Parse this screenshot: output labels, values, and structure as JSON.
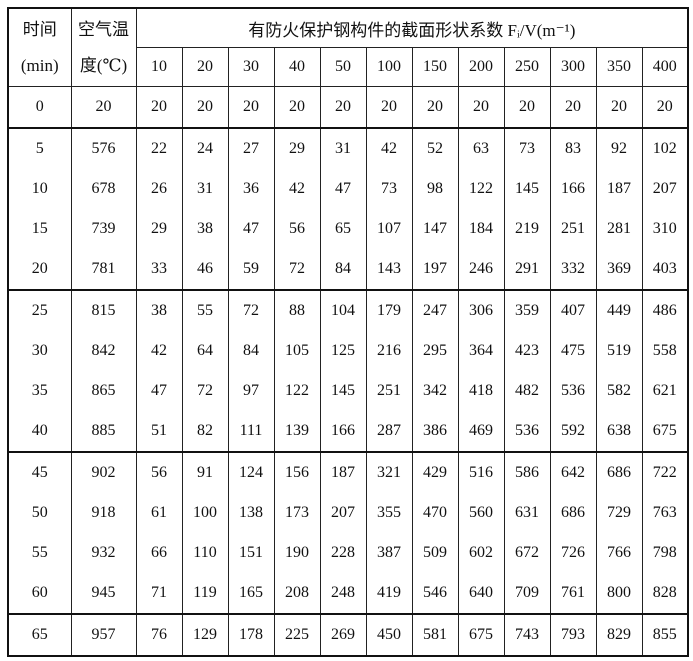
{
  "header": {
    "time_label": "时间",
    "time_unit": "(min)",
    "air_label": "空气温",
    "air_unit": "度(℃)",
    "group_title": "有防火保护钢构件的截面形状系数 Fᵢ/V(m⁻¹)",
    "factors": [
      "10",
      "20",
      "30",
      "40",
      "50",
      "100",
      "150",
      "200",
      "250",
      "300",
      "350",
      "400"
    ]
  },
  "rows": [
    {
      "time": "0",
      "air": "20",
      "values": [
        "20",
        "20",
        "20",
        "20",
        "20",
        "20",
        "20",
        "20",
        "20",
        "20",
        "20",
        "20"
      ]
    },
    {
      "time": "5",
      "air": "576",
      "values": [
        "22",
        "24",
        "27",
        "29",
        "31",
        "42",
        "52",
        "63",
        "73",
        "83",
        "92",
        "102"
      ]
    },
    {
      "time": "10",
      "air": "678",
      "values": [
        "26",
        "31",
        "36",
        "42",
        "47",
        "73",
        "98",
        "122",
        "145",
        "166",
        "187",
        "207"
      ]
    },
    {
      "time": "15",
      "air": "739",
      "values": [
        "29",
        "38",
        "47",
        "56",
        "65",
        "107",
        "147",
        "184",
        "219",
        "251",
        "281",
        "310"
      ]
    },
    {
      "time": "20",
      "air": "781",
      "values": [
        "33",
        "46",
        "59",
        "72",
        "84",
        "143",
        "197",
        "246",
        "291",
        "332",
        "369",
        "403"
      ]
    },
    {
      "time": "25",
      "air": "815",
      "values": [
        "38",
        "55",
        "72",
        "88",
        "104",
        "179",
        "247",
        "306",
        "359",
        "407",
        "449",
        "486"
      ]
    },
    {
      "time": "30",
      "air": "842",
      "values": [
        "42",
        "64",
        "84",
        "105",
        "125",
        "216",
        "295",
        "364",
        "423",
        "475",
        "519",
        "558"
      ]
    },
    {
      "time": "35",
      "air": "865",
      "values": [
        "47",
        "72",
        "97",
        "122",
        "145",
        "251",
        "342",
        "418",
        "482",
        "536",
        "582",
        "621"
      ]
    },
    {
      "time": "40",
      "air": "885",
      "values": [
        "51",
        "82",
        "111",
        "139",
        "166",
        "287",
        "386",
        "469",
        "536",
        "592",
        "638",
        "675"
      ]
    },
    {
      "time": "45",
      "air": "902",
      "values": [
        "56",
        "91",
        "124",
        "156",
        "187",
        "321",
        "429",
        "516",
        "586",
        "642",
        "686",
        "722"
      ]
    },
    {
      "time": "50",
      "air": "918",
      "values": [
        "61",
        "100",
        "138",
        "173",
        "207",
        "355",
        "470",
        "560",
        "631",
        "686",
        "729",
        "763"
      ]
    },
    {
      "time": "55",
      "air": "932",
      "values": [
        "66",
        "110",
        "151",
        "190",
        "228",
        "387",
        "509",
        "602",
        "672",
        "726",
        "766",
        "798"
      ]
    },
    {
      "time": "60",
      "air": "945",
      "values": [
        "71",
        "119",
        "165",
        "208",
        "248",
        "419",
        "546",
        "640",
        "709",
        "761",
        "800",
        "828"
      ]
    },
    {
      "time": "65",
      "air": "957",
      "values": [
        "76",
        "129",
        "178",
        "225",
        "269",
        "450",
        "581",
        "675",
        "743",
        "793",
        "829",
        "855"
      ]
    }
  ]
}
